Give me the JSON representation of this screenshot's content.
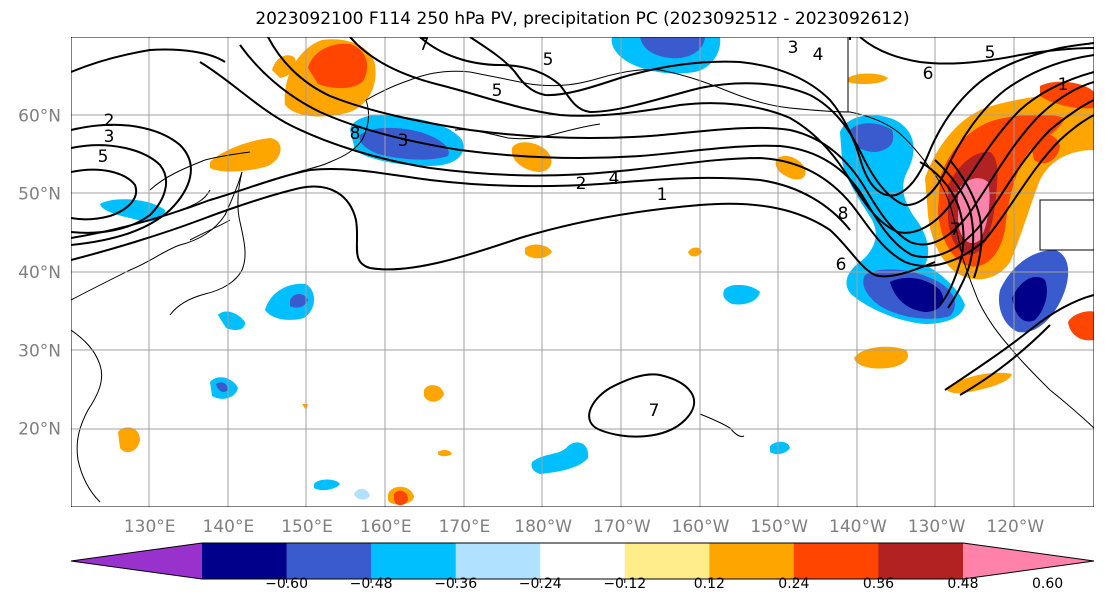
{
  "title": "2023092100 F114 250 hPa PV, precipitation PC (2023092512 - 2023092612)",
  "map": {
    "lat_labels": [
      {
        "text": "60°N",
        "lat": 60
      },
      {
        "text": "50°N",
        "lat": 50
      },
      {
        "text": "40°N",
        "lat": 40
      },
      {
        "text": "30°N",
        "lat": 30
      },
      {
        "text": "20°N",
        "lat": 20
      }
    ],
    "lon_labels": [
      {
        "text": "130°E",
        "lon": 130
      },
      {
        "text": "140°E",
        "lon": 140
      },
      {
        "text": "150°E",
        "lon": 150
      },
      {
        "text": "160°E",
        "lon": 160
      },
      {
        "text": "170°E",
        "lon": 170
      },
      {
        "text": "180°W",
        "lon": 180
      },
      {
        "text": "170°W",
        "lon": 190
      },
      {
        "text": "160°W",
        "lon": 200
      },
      {
        "text": "150°W",
        "lon": 210
      },
      {
        "text": "140°W",
        "lon": 220
      },
      {
        "text": "130°W",
        "lon": 230
      },
      {
        "text": "120°W",
        "lon": 240
      }
    ],
    "contour_labels": [
      "2",
      "3",
      "5",
      "7",
      "8",
      "5",
      "4",
      "3",
      "2",
      "1",
      "6",
      "8",
      "7",
      "5",
      "6",
      "1",
      "7",
      "5",
      "4",
      "3"
    ]
  },
  "colorbar": {
    "colors": [
      "#9932CC",
      "#00008B",
      "#3A5BCD",
      "#00BFFF",
      "#B0E2FF",
      "#FFFFFF",
      "#FFEC8B",
      "#FFA500",
      "#FF4500",
      "#B22222",
      "#FF82AB"
    ],
    "labels": [
      "−0.60",
      "−0.48",
      "−0.36",
      "−0.24",
      "−0.12",
      "0.12",
      "0.24",
      "0.36",
      "0.48",
      "0.60"
    ]
  },
  "precip_colors": {
    "pos_light": "#FFEC8B",
    "pos_1": "#FFA500",
    "pos_2": "#FF4500",
    "pos_3": "#B22222",
    "pos_4": "#FF82AB",
    "neg_light": "#B0E2FF",
    "neg_1": "#00BFFF",
    "neg_2": "#3A5BCD",
    "neg_3": "#00008B"
  }
}
